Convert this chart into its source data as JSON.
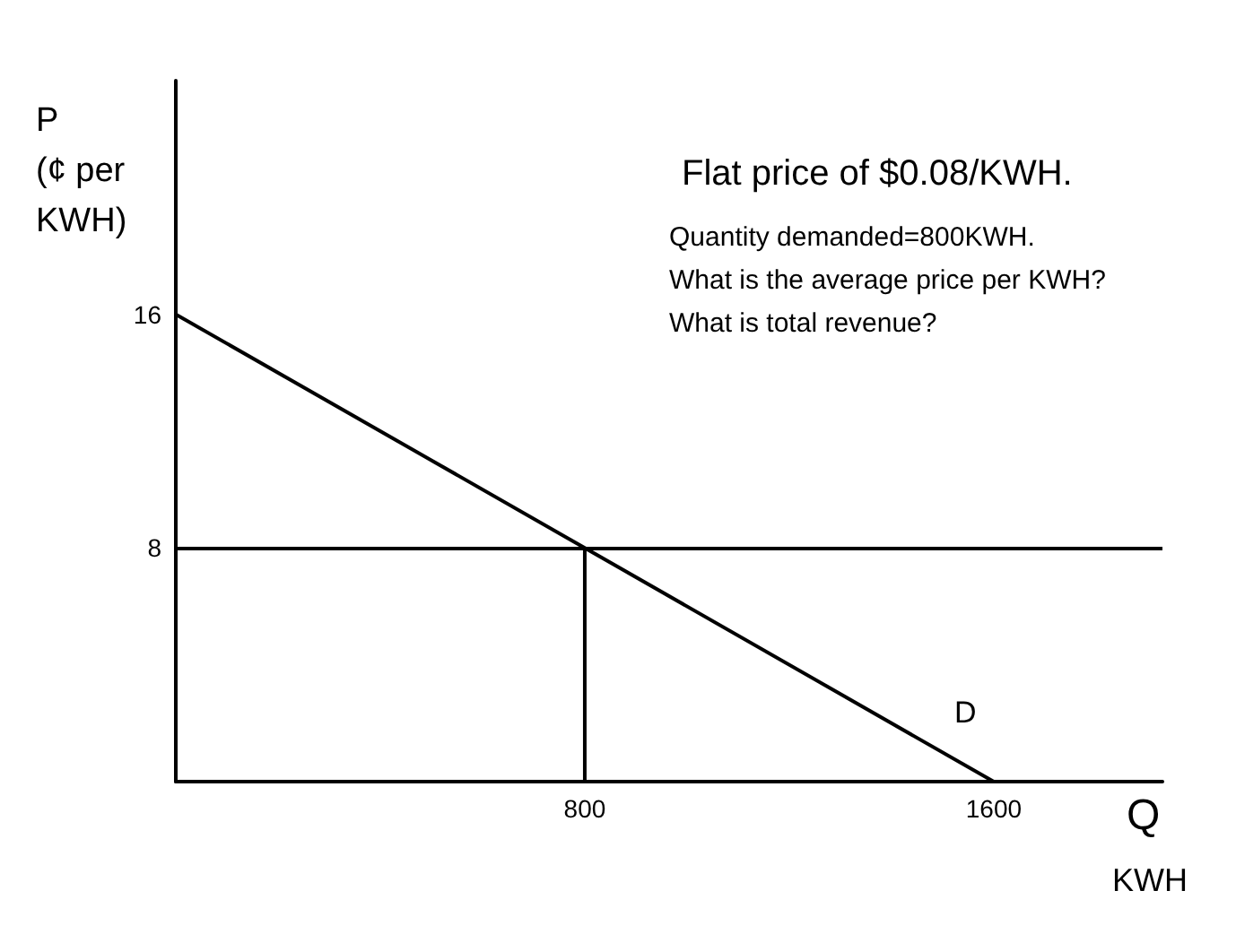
{
  "chart_data": {
    "type": "line",
    "title": "Flat price of $0.08/KWH.",
    "xlabel": "Q\nKWH",
    "ylabel": "P\n(¢ per\nKWH)",
    "annotations": [
      "Quantity demanded=800KWH.",
      "What is the average price per KWH?",
      "What is total revenue?"
    ],
    "series": [
      {
        "name": "D",
        "x": [
          0,
          1600
        ],
        "values": [
          16,
          0
        ],
        "color": "#000000"
      },
      {
        "x": [
          800,
          800
        ],
        "values": [
          0,
          8
        ],
        "color": "#000000"
      }
    ],
    "ref_lines": [
      {
        "axis": "y",
        "value": 8,
        "color": "#000000"
      }
    ],
    "xlim": [
      0,
      1930
    ],
    "ylim": [
      0,
      24
    ],
    "xticks": [
      800,
      1600
    ],
    "yticks": [
      8,
      16
    ],
    "grid": false,
    "marker": "none",
    "line_style": "solid"
  }
}
